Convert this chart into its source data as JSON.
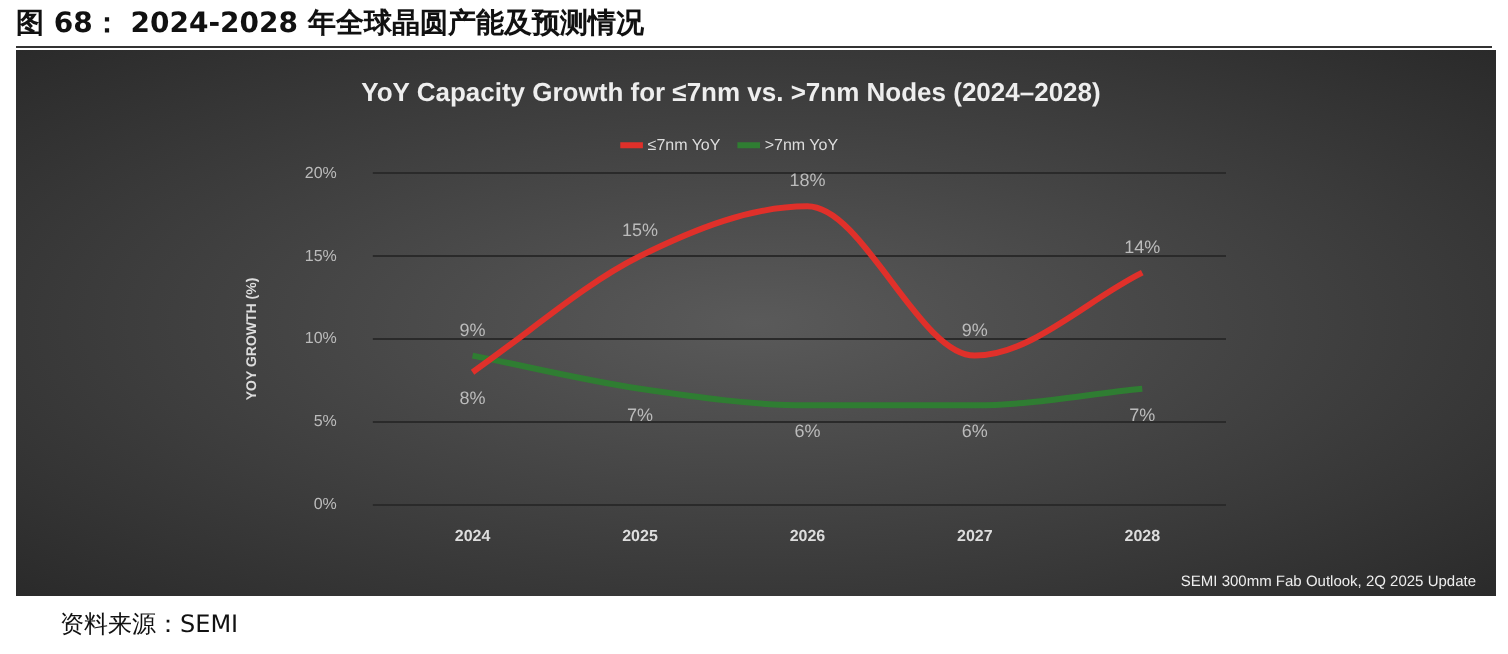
{
  "chart_data": {
    "type": "line",
    "title": "图 68： 2024-2028 年全球晶圆产能及预测情况",
    "subtitle": "YoY Capacity Growth for ≤7nm vs. >7nm Nodes (2024–2028)",
    "ylabel": "YOY GROWTH (%)",
    "categories": [
      "2024",
      "2025",
      "2026",
      "2027",
      "2028"
    ],
    "series": [
      {
        "name": "≤7nm YoY",
        "color": "#e0302a",
        "values": [
          8,
          15,
          18,
          9,
          14
        ],
        "value_labels": [
          "8%",
          "15%",
          "18%",
          "9%",
          "14%"
        ]
      },
      {
        "name": ">7nm YoY",
        "color": "#2f7d32",
        "values": [
          9,
          7,
          6,
          6,
          7
        ],
        "value_labels": [
          "9%",
          "7%",
          "6%",
          "6%",
          "7%"
        ]
      }
    ],
    "ylim": [
      0,
      20
    ],
    "yticks": [
      {
        "value": 0,
        "label": "0%"
      },
      {
        "value": 5,
        "label": "5%"
      },
      {
        "value": 10,
        "label": "10%"
      },
      {
        "value": 15,
        "label": "15%"
      },
      {
        "value": 20,
        "label": "20%"
      }
    ],
    "grid": "y",
    "legend": "top",
    "marker": "none",
    "line_style": "solid",
    "annotations": [
      "SEMI 300mm Fab Outlook, 2Q 2025 Update",
      "资料来源：SEMI"
    ]
  }
}
